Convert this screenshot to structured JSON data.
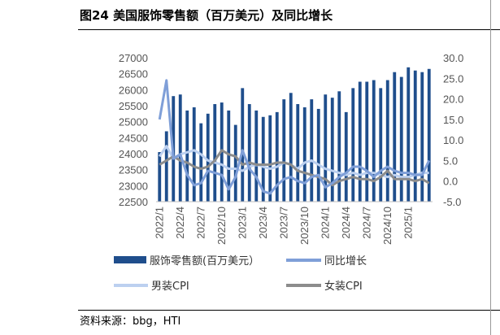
{
  "figure": {
    "title": "图24 美国服饰零售额（百万美元）及同比增长",
    "source": "资料来源：bbg，HTI"
  },
  "colors": {
    "bars": "#1f4e8c",
    "yoy": "#7f9fd8",
    "men_cpi": "#bcd0f0",
    "women_cpi": "#8c8c8c"
  },
  "chart_data": {
    "type": "bar",
    "categories": [
      "2022/1",
      "2022/2",
      "2022/3",
      "2022/4",
      "2022/5",
      "2022/6",
      "2022/7",
      "2022/8",
      "2022/9",
      "2022/10",
      "2022/11",
      "2022/12",
      "2023/1",
      "2023/2",
      "2023/3",
      "2023/4",
      "2023/5",
      "2023/6",
      "2023/7",
      "2023/8",
      "2023/9",
      "2023/10",
      "2023/11",
      "2023/12",
      "2024/1",
      "2024/2",
      "2024/3",
      "2024/4",
      "2024/5",
      "2024/6",
      "2024/7",
      "2024/8",
      "2024/9",
      "2024/10",
      "2024/11",
      "2024/12",
      "2025/1",
      "2025/2",
      "2025/3",
      "2025/4"
    ],
    "x_tick_labels": [
      "2022/1",
      "2022/4",
      "2022/7",
      "2022/10",
      "2023/1",
      "2023/4",
      "2023/7",
      "2023/10",
      "2024/1",
      "2024/4",
      "2024/7",
      "2024/10",
      "2025/1"
    ],
    "y_left": {
      "min": 22500,
      "max": 27000,
      "step": 500,
      "ticks": [
        "27000",
        "26500",
        "26000",
        "25500",
        "25000",
        "24500",
        "24000",
        "23500",
        "23000",
        "22500"
      ]
    },
    "y_right": {
      "min": -5,
      "max": 30,
      "step": 5,
      "ticks": [
        "30.0",
        "25.0",
        "20.0",
        "15.0",
        "10.0",
        "5.0",
        "0.0",
        "-5.0"
      ]
    },
    "series": [
      {
        "name": "服饰零售额(百万美元）",
        "kind": "bar",
        "axis": "left",
        "values": [
          24050,
          24700,
          25800,
          25850,
          25350,
          25450,
          24950,
          25250,
          25550,
          25600,
          25350,
          24900,
          26050,
          25550,
          25350,
          25150,
          25200,
          25300,
          25700,
          25900,
          25550,
          25450,
          25700,
          25400,
          25850,
          25750,
          25950,
          25300,
          26050,
          26250,
          26250,
          26300,
          26050,
          26300,
          26550,
          26400,
          26700,
          26600,
          26550,
          26650
        ]
      },
      {
        "name": "同比增长",
        "kind": "line",
        "axis": "right",
        "values": [
          15.0,
          24.5,
          5.5,
          6.5,
          1.5,
          -1.0,
          -0.5,
          2.5,
          2.0,
          1.5,
          -2.0,
          1.0,
          7.5,
          3.0,
          1.0,
          -2.5,
          -3.0,
          -1.0,
          0.5,
          1.0,
          0.0,
          -0.5,
          1.0,
          1.5,
          -1.5,
          -0.5,
          1.0,
          2.0,
          3.5,
          3.5,
          2.5,
          1.0,
          2.5,
          3.5,
          2.5,
          2.0,
          2.0,
          1.5,
          1.5,
          5.0
        ]
      },
      {
        "name": "男装CPI",
        "kind": "line",
        "axis": "right",
        "values": [
          6.0,
          8.5,
          5.5,
          6.5,
          7.0,
          7.5,
          6.5,
          5.0,
          4.5,
          4.0,
          3.0,
          3.0,
          2.5,
          3.5,
          4.0,
          3.5,
          3.0,
          3.5,
          4.5,
          4.0,
          3.0,
          4.5,
          5.0,
          4.0,
          3.0,
          2.5,
          2.0,
          1.5,
          2.0,
          1.5,
          2.0,
          2.0,
          1.5,
          1.0,
          1.5,
          1.0,
          1.0,
          1.5,
          2.0,
          2.0
        ]
      },
      {
        "name": "女装CPI",
        "kind": "line",
        "axis": "right",
        "values": [
          4.0,
          5.0,
          6.0,
          5.0,
          4.5,
          3.5,
          3.0,
          3.5,
          5.0,
          7.5,
          6.5,
          6.0,
          4.0,
          4.5,
          4.0,
          4.0,
          4.0,
          4.5,
          4.5,
          4.0,
          2.5,
          2.0,
          1.5,
          1.0,
          0.5,
          -1.0,
          0.0,
          0.5,
          1.0,
          0.5,
          0.5,
          0.0,
          1.0,
          2.5,
          0.5,
          0.5,
          0.5,
          0.0,
          0.5,
          -0.5
        ]
      }
    ],
    "legend_placement": "bottom",
    "grid": false
  }
}
